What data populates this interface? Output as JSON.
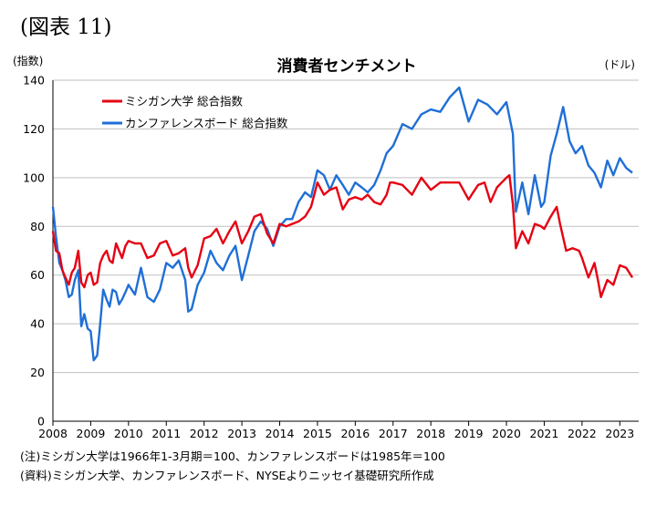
{
  "figure_label": "(図表 11)",
  "notes": [
    "(注)ミシガン大学は1966年1-3月期＝100、カンファレンスボードは1985年＝100",
    "(資料)ミシガン大学、カンファレンスボード、NYSEよりニッセイ基礎研究所作成"
  ],
  "colors": {
    "michigan": "#e60012",
    "conference_board": "#1f6fd6",
    "grid": "#bfbfbf"
  },
  "chart_data": {
    "type": "line",
    "title": "消費者センチメント",
    "ylabel": "(指数)",
    "y2label": "(ドル)",
    "xlabel": "",
    "ylim": [
      0,
      140
    ],
    "yticks": [
      0,
      20,
      40,
      60,
      80,
      100,
      120,
      140
    ],
    "xlim": [
      2008,
      2023.5
    ],
    "xticks": [
      2008,
      2009,
      2010,
      2011,
      2012,
      2013,
      2014,
      2015,
      2016,
      2017,
      2018,
      2019,
      2020,
      2021,
      2022,
      2023
    ],
    "grid": true,
    "legend_position": "top-left",
    "series": [
      {
        "name": "ミシガン大学 総合指数",
        "color": "#e60012",
        "x": [
          2008.0,
          2008.08,
          2008.17,
          2008.25,
          2008.33,
          2008.42,
          2008.5,
          2008.58,
          2008.67,
          2008.75,
          2008.83,
          2008.92,
          2009.0,
          2009.08,
          2009.17,
          2009.25,
          2009.33,
          2009.42,
          2009.5,
          2009.58,
          2009.67,
          2009.75,
          2009.83,
          2009.92,
          2010.0,
          2010.17,
          2010.33,
          2010.5,
          2010.67,
          2010.83,
          2011.0,
          2011.17,
          2011.33,
          2011.5,
          2011.58,
          2011.67,
          2011.83,
          2012.0,
          2012.17,
          2012.33,
          2012.5,
          2012.67,
          2012.83,
          2013.0,
          2013.17,
          2013.33,
          2013.5,
          2013.67,
          2013.83,
          2014.0,
          2014.17,
          2014.33,
          2014.5,
          2014.67,
          2014.83,
          2015.0,
          2015.17,
          2015.33,
          2015.5,
          2015.67,
          2015.83,
          2016.0,
          2016.17,
          2016.33,
          2016.5,
          2016.67,
          2016.83,
          2016.92,
          2017.0,
          2017.25,
          2017.5,
          2017.75,
          2018.0,
          2018.25,
          2018.5,
          2018.75,
          2019.0,
          2019.08,
          2019.25,
          2019.42,
          2019.58,
          2019.75,
          2020.0,
          2020.08,
          2020.17,
          2020.25,
          2020.42,
          2020.58,
          2020.75,
          2020.92,
          2021.0,
          2021.17,
          2021.33,
          2021.42,
          2021.58,
          2021.75,
          2021.92,
          2022.0,
          2022.17,
          2022.33,
          2022.42,
          2022.5,
          2022.67,
          2022.83,
          2023.0,
          2023.17,
          2023.33
        ],
        "values": [
          78,
          70,
          69,
          62,
          59,
          56,
          61,
          63,
          70,
          57,
          55,
          60,
          61,
          56,
          57,
          65,
          68,
          70,
          66,
          65,
          73,
          70,
          67,
          72,
          74,
          73,
          73,
          67,
          68,
          73,
          74,
          68,
          69,
          71,
          63,
          59,
          64,
          75,
          76,
          79,
          73,
          78,
          82,
          73,
          78,
          84,
          85,
          77,
          73,
          81,
          80,
          81,
          82,
          84,
          88,
          98,
          93,
          95,
          96,
          87,
          91,
          92,
          91,
          93,
          90,
          89,
          93,
          98,
          98,
          97,
          93,
          100,
          95,
          98,
          98,
          98,
          91,
          93,
          97,
          98,
          90,
          96,
          100,
          101,
          89,
          71,
          78,
          73,
          81,
          80,
          79,
          84,
          88,
          81,
          70,
          71,
          70,
          67,
          59,
          65,
          58,
          51,
          58,
          56,
          64,
          63,
          59
        ]
      },
      {
        "name": "カンファレンスボード 総合指数",
        "color": "#1f6fd6",
        "x": [
          2008.0,
          2008.08,
          2008.17,
          2008.25,
          2008.33,
          2008.42,
          2008.5,
          2008.58,
          2008.67,
          2008.75,
          2008.83,
          2008.92,
          2009.0,
          2009.08,
          2009.17,
          2009.25,
          2009.33,
          2009.42,
          2009.5,
          2009.58,
          2009.67,
          2009.75,
          2009.83,
          2009.92,
          2010.0,
          2010.17,
          2010.33,
          2010.5,
          2010.67,
          2010.83,
          2011.0,
          2011.17,
          2011.33,
          2011.5,
          2011.58,
          2011.67,
          2011.83,
          2012.0,
          2012.17,
          2012.33,
          2012.5,
          2012.67,
          2012.83,
          2013.0,
          2013.17,
          2013.33,
          2013.5,
          2013.67,
          2013.83,
          2014.0,
          2014.17,
          2014.33,
          2014.5,
          2014.67,
          2014.83,
          2015.0,
          2015.17,
          2015.33,
          2015.5,
          2015.67,
          2015.83,
          2016.0,
          2016.17,
          2016.33,
          2016.5,
          2016.67,
          2016.83,
          2017.0,
          2017.25,
          2017.5,
          2017.75,
          2018.0,
          2018.25,
          2018.5,
          2018.75,
          2019.0,
          2019.25,
          2019.5,
          2019.75,
          2020.0,
          2020.17,
          2020.25,
          2020.42,
          2020.58,
          2020.75,
          2020.92,
          2021.0,
          2021.17,
          2021.33,
          2021.5,
          2021.67,
          2021.83,
          2022.0,
          2022.17,
          2022.33,
          2022.5,
          2022.67,
          2022.83,
          2023.0,
          2023.17,
          2023.33
        ],
        "values": [
          88,
          76,
          65,
          62,
          58,
          51,
          52,
          58,
          62,
          39,
          44,
          38,
          37,
          25,
          27,
          40,
          54,
          50,
          47,
          54,
          53,
          48,
          50,
          53,
          56,
          52,
          63,
          51,
          49,
          54,
          65,
          63,
          66,
          58,
          45,
          46,
          56,
          61,
          70,
          65,
          62,
          68,
          72,
          58,
          68,
          78,
          82,
          79,
          72,
          80,
          83,
          83,
          90,
          94,
          92,
          103,
          101,
          95,
          101,
          97,
          93,
          98,
          96,
          94,
          97,
          103,
          110,
          113,
          122,
          120,
          126,
          128,
          127,
          133,
          137,
          123,
          132,
          130,
          126,
          131,
          118,
          86,
          98,
          85,
          101,
          88,
          90,
          109,
          118,
          129,
          115,
          110,
          113,
          105,
          102,
          96,
          107,
          101,
          108,
          104,
          102
        ]
      }
    ]
  }
}
